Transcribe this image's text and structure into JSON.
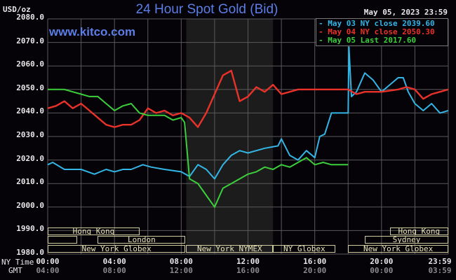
{
  "header": {
    "title": "24 Hour Spot Gold (Bid)",
    "unit": "USD/oz",
    "datetime": "May 05, 2023 23:59",
    "watermark": "www.kitco.com"
  },
  "legend": [
    {
      "label": "May 03 NY close 2039.60",
      "color": "#33b5e5"
    },
    {
      "label": "May 04 NY close 2050.30",
      "color": "#e8322a"
    },
    {
      "label": "May 05 Last 2017.60",
      "color": "#3ccf3c"
    }
  ],
  "axes": {
    "y_ticks": [
      "2080.0",
      "2070.0",
      "2060.0",
      "2050.0",
      "2040.0",
      "2030.0",
      "2020.0",
      "2010.0",
      "2000.0",
      "1990.0",
      "1980.0"
    ],
    "x_row_labels": {
      "ny": "NY Time",
      "gmt": "GMT"
    },
    "x_ticks_ny": [
      "00:00",
      "04:00",
      "08:00",
      "12:00",
      "16:00",
      "20:00",
      "23:59"
    ],
    "x_ticks_gmt": [
      "04:00",
      "08:00",
      "12:00",
      "16:00",
      "20:00",
      "00:00",
      "03:59"
    ]
  },
  "sessions": [
    {
      "label": "Hong Kong",
      "start": 0,
      "end": 5.5,
      "row": 0
    },
    {
      "label": "",
      "start": 0,
      "end": 1.75,
      "row": 1
    },
    {
      "label": "London",
      "start": 3.0,
      "end": 8.25,
      "row": 1
    },
    {
      "label": "New York Globex",
      "start": 0,
      "end": 8.25,
      "row": 2
    },
    {
      "label": "New York NYMEX",
      "start": 8.3,
      "end": 13.5,
      "row": 2
    },
    {
      "label": "NY Globex",
      "start": 13.5,
      "end": 17.25,
      "row": 2
    },
    {
      "label": "Hong Kong",
      "start": 20.5,
      "end": 24,
      "row": 0
    },
    {
      "label": "Sydney",
      "start": 19.0,
      "end": 24,
      "row": 1
    },
    {
      "label": "New York Globex",
      "start": 18.0,
      "end": 24,
      "row": 2
    }
  ],
  "colors": {
    "background": "#050208",
    "grid": "#5a5a5a",
    "shade": "#1c1c1c",
    "title": "#5b7fe6"
  },
  "chart_data": {
    "type": "line",
    "title": "24 Hour Spot Gold (Bid)",
    "xlabel": "NY Time (hours)",
    "ylabel": "USD/oz",
    "ylim": [
      1980,
      2080
    ],
    "xlim": [
      0,
      24
    ],
    "grid": true,
    "legend_position": "top-right",
    "shaded_region_hours": [
      8.3,
      13.5
    ],
    "series": [
      {
        "name": "May 03 NY close 2039.60",
        "color": "#33b5e5",
        "x": [
          0,
          0.3,
          1,
          2,
          2.8,
          3.5,
          4,
          4.5,
          5,
          5.7,
          6.2,
          7,
          8,
          8.5,
          9,
          9.5,
          10,
          10.5,
          11,
          11.5,
          12,
          13,
          13.8,
          14,
          14.5,
          15,
          15.5,
          16,
          16.3,
          16.6,
          17,
          18,
          18.05,
          18.2,
          18.5,
          19,
          19.5,
          20,
          20.5,
          21,
          21.3,
          21.6,
          22,
          22.5,
          23,
          23.5,
          24
        ],
        "values": [
          2018,
          2019,
          2016,
          2016,
          2014,
          2016,
          2015,
          2016,
          2016,
          2018,
          2017,
          2016,
          2015,
          2013,
          2018,
          2016,
          2012,
          2018,
          2022,
          2024,
          2023,
          2025,
          2026,
          2029,
          2022,
          2020,
          2024,
          2021,
          2030,
          2031,
          2040,
          2040,
          2068,
          2047,
          2049,
          2057,
          2054,
          2049,
          2052,
          2055,
          2055,
          2049,
          2044,
          2041,
          2044,
          2040,
          2041
        ]
      },
      {
        "name": "May 04 NY close 2050.30",
        "color": "#e8322a",
        "x": [
          0,
          0.5,
          1,
          1.5,
          2,
          2.5,
          3,
          3.5,
          4,
          4.5,
          5,
          5.5,
          6,
          6.5,
          7,
          7.5,
          8,
          8.5,
          9,
          9.5,
          10,
          10.5,
          11,
          11.5,
          12,
          12.5,
          13,
          13.5,
          14,
          14.5,
          15,
          16,
          17,
          18,
          18.5,
          19,
          20,
          21,
          21.5,
          22,
          22.5,
          23,
          23.5,
          24
        ],
        "values": [
          2042,
          2043,
          2045,
          2042,
          2044,
          2041,
          2038,
          2035,
          2034,
          2035,
          2035,
          2037,
          2042,
          2040,
          2041,
          2039,
          2040,
          2038,
          2034,
          2040,
          2048,
          2056,
          2058,
          2045,
          2047,
          2051,
          2049,
          2052,
          2048,
          2049,
          2050,
          2050,
          2050,
          2050,
          2048,
          2049,
          2049,
          2050,
          2051,
          2050,
          2046,
          2048,
          2049,
          2050
        ]
      },
      {
        "name": "May 05 Last 2017.60",
        "color": "#3ccf3c",
        "x": [
          0,
          0.5,
          1,
          1.5,
          2,
          2.5,
          3,
          3.5,
          4,
          4.5,
          5,
          5.5,
          6,
          6.5,
          7,
          7.5,
          8,
          8.2,
          8.5,
          9,
          9.5,
          10,
          10.5,
          11,
          11.5,
          12,
          12.5,
          13,
          13.5,
          14,
          14.5,
          15,
          15.5,
          16,
          16.5,
          17,
          18
        ],
        "values": [
          2050,
          2050,
          2050,
          2049,
          2048,
          2047,
          2047,
          2044,
          2041,
          2043,
          2044,
          2040,
          2039,
          2039,
          2039,
          2037,
          2038,
          2036,
          2012,
          2010,
          2005,
          2000,
          2008,
          2010,
          2012,
          2014,
          2015,
          2017,
          2016,
          2018,
          2017,
          2019,
          2021,
          2018,
          2019,
          2018,
          2018
        ]
      }
    ]
  }
}
